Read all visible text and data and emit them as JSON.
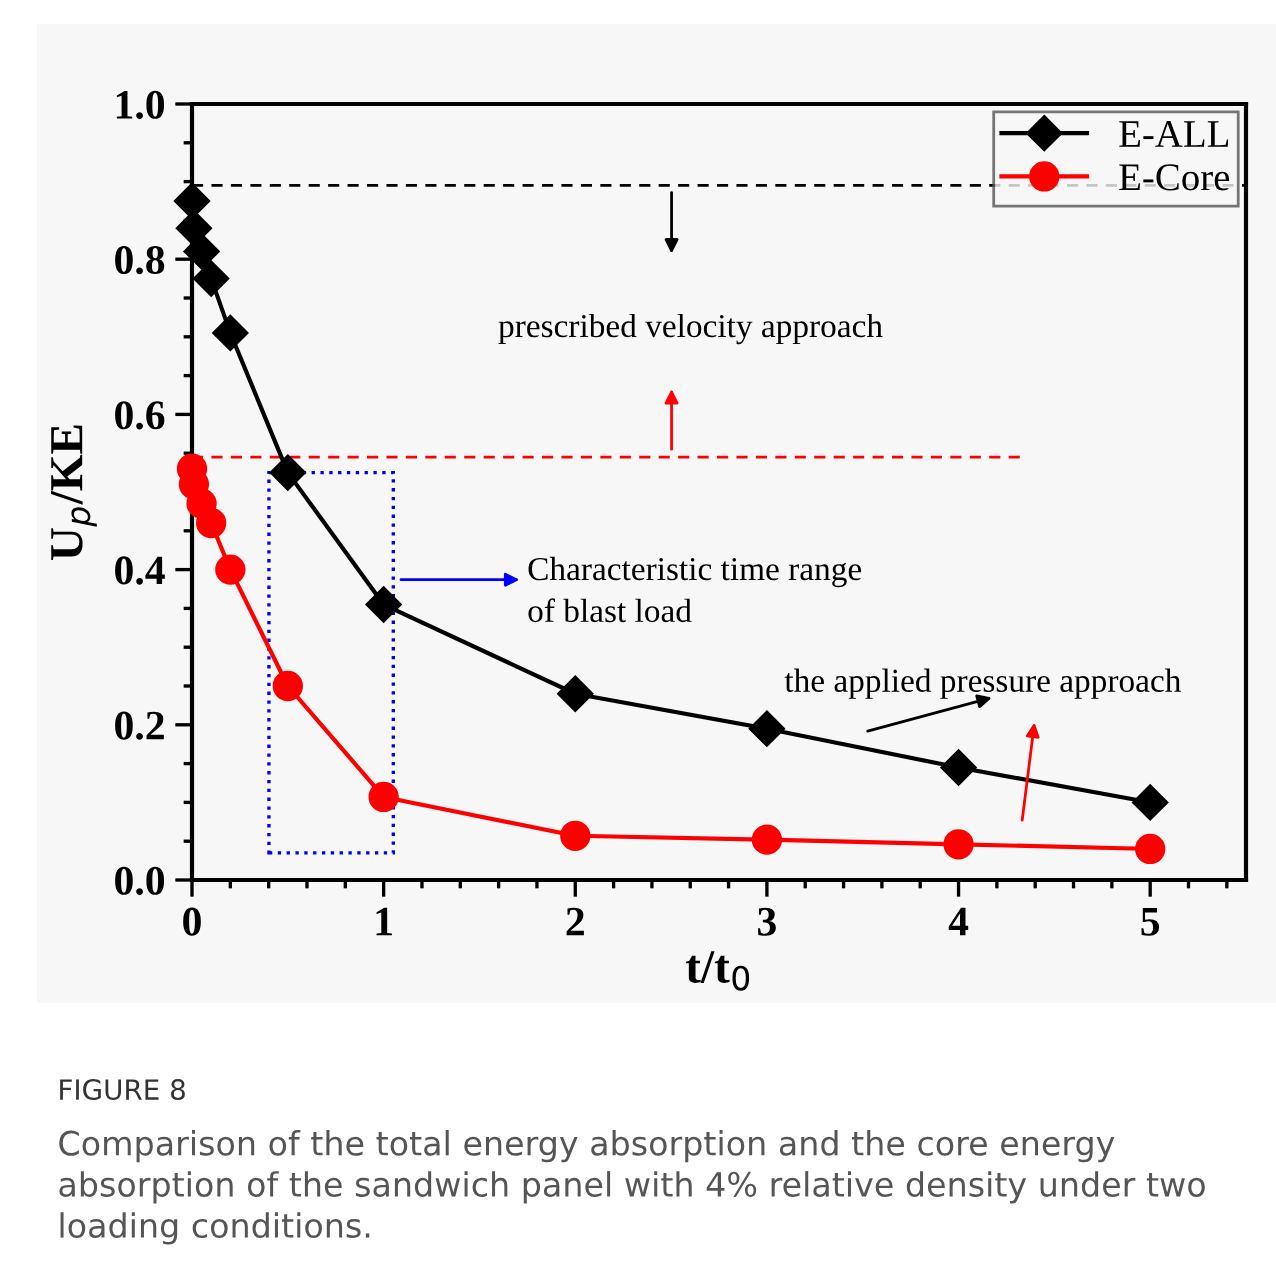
{
  "chart_data": {
    "type": "line",
    "xlabel": "t/t$_{0}$",
    "ylabel": "U$_{p}$/KE",
    "xlim": [
      0,
      5.5
    ],
    "xticks": [
      0,
      1,
      2,
      3,
      4,
      5
    ],
    "ylim": [
      0,
      1.0
    ],
    "yticks": [
      {
        "value": 0,
        "label": "0.0"
      },
      0.2,
      0.4,
      0.6,
      0.8,
      {
        "value": 1.0,
        "label": "1.0"
      }
    ],
    "grid": false,
    "legend": "top right",
    "line_style": "solid",
    "series": [
      {
        "name": "E-ALL",
        "color": "#000000",
        "marker": "diamond",
        "x": [
          0,
          0.01,
          0.05,
          0.1,
          0.2,
          0.5,
          1,
          2,
          3,
          4,
          5
        ],
        "values": [
          0.875,
          0.84,
          0.81,
          0.775,
          0.705,
          0.525,
          0.355,
          0.24,
          0.195,
          0.145,
          0.1
        ]
      },
      {
        "name": "E-Core",
        "color": "#ff0000",
        "marker": "circle",
        "x": [
          0,
          0.01,
          0.05,
          0.1,
          0.2,
          0.5,
          1,
          2,
          3,
          4,
          5
        ],
        "values": [
          0.53,
          0.51,
          0.485,
          0.46,
          0.4,
          0.25,
          0.107,
          0.057,
          0.052,
          0.046,
          0.04
        ]
      }
    ],
    "ref_lines": [
      {
        "axis": "y",
        "value": 0.895,
        "color": "#000000",
        "line_style": "dashed"
      },
      {
        "axis": "y",
        "value": 0.545,
        "color": "#ff0000",
        "line_style": "dashed"
      }
    ],
    "annotations": [
      "prescribed velocity approach",
      "Characteristic time range\nof blast load",
      "the applied pressure approach",
      "FIGURE 8",
      "Comparison of the total energy absorption and the core energy absorption of the sandwich panel with 4% relative density under two loading conditions."
    ]
  }
}
